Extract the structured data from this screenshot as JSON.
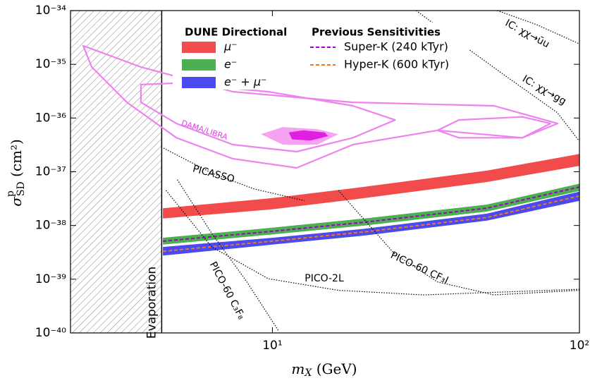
{
  "chart_data": {
    "type": "line",
    "xscale": "log",
    "yscale": "log",
    "xlim": [
      2.2,
      100
    ],
    "ylim": [
      1e-40,
      1e-34
    ],
    "xticks": [
      {
        "value": 10,
        "label": "10¹"
      },
      {
        "value": 100,
        "label": "10²"
      }
    ],
    "yticks": [
      {
        "value": 1e-40,
        "label": "10⁻⁴⁰"
      },
      {
        "value": 1e-39,
        "label": "10⁻³⁹"
      },
      {
        "value": 1e-38,
        "label": "10⁻³⁸"
      },
      {
        "value": 1e-37,
        "label": "10⁻³⁷"
      },
      {
        "value": 1e-36,
        "label": "10⁻³⁶"
      },
      {
        "value": 1e-35,
        "label": "10⁻³⁵"
      },
      {
        "value": 1e-34,
        "label": "10⁻³⁴"
      }
    ],
    "xlabel": {
      "symbol": "m",
      "sub": "X",
      "unit": " (GeV)"
    },
    "ylabel": {
      "symbol": "σ",
      "sub": "SD",
      "sup": "p",
      "unit": " (cm²)"
    },
    "legend_titles": [
      "DUNE Directional",
      "Previous Sensitivities"
    ],
    "bands": [
      {
        "name": "μ⁻",
        "color": "#f24b4b",
        "x": [
          4.4,
          10,
          20,
          50,
          100
        ],
        "lower": [
          1.35e-38,
          2e-38,
          3.24e-38,
          6.46e-38,
          1.29e-37
        ],
        "upper": [
          2.09e-38,
          3.24e-38,
          5.25e-38,
          1.05e-37,
          2.14e-37
        ]
      },
      {
        "name": "e⁻",
        "color": "#4caf50",
        "x": [
          4.4,
          10,
          20,
          50,
          100
        ],
        "lower": [
          4.4e-39,
          6.8e-39,
          1e-38,
          1.82e-38,
          4.4e-38
        ],
        "upper": [
          5.9e-39,
          9.1e-39,
          1.35e-38,
          2.45e-38,
          6e-38
        ]
      },
      {
        "name": "e⁻ + μ⁻",
        "color": "#4a4af0",
        "x": [
          4.4,
          10,
          20,
          50,
          100
        ],
        "lower": [
          2.75e-39,
          4.4e-39,
          6.5e-39,
          1.23e-38,
          2.88e-38
        ],
        "upper": [
          3.98e-39,
          5.9e-39,
          8.7e-39,
          1.66e-38,
          4.27e-38
        ]
      }
    ],
    "series": [
      {
        "name": "Super-K (240 kTyr)",
        "color": "#a000c8",
        "x": [
          4.4,
          10,
          20,
          50,
          100
        ],
        "values": [
          5.1e-39,
          7.8e-39,
          1.15e-38,
          2.1e-38,
          5.2e-38
        ]
      },
      {
        "name": "Hyper-K (600 kTyr)",
        "color": "#f07820",
        "x": [
          4.4,
          10,
          20,
          50,
          100
        ],
        "values": [
          3.3e-39,
          5.1e-39,
          7.6e-39,
          1.41e-38,
          3.55e-38
        ]
      }
    ],
    "curves": [
      {
        "label": "IC: χχ→ūu",
        "x": [
          54,
          72.4,
          100
        ],
        "values": [
          1e-34,
          5.5e-35,
          2.4e-35
        ]
      },
      {
        "label": "IC: χχ→gg",
        "x": [
          29.4,
          40.4,
          58.6,
          84.7,
          100
        ],
        "values": [
          1e-34,
          2.6e-35,
          5.6e-36,
          1.26e-36,
          3.7e-37
        ]
      },
      {
        "label": "PICASSO",
        "x": [
          4.42,
          6.34,
          8.7,
          12.7
        ],
        "values": [
          2.75e-37,
          9.5e-38,
          4.8e-38,
          2.9e-38
        ]
      },
      {
        "label": "PICO-2L",
        "x": [
          4.5,
          6.34,
          9.7,
          16.4,
          31,
          100
        ],
        "values": [
          4.5e-38,
          4e-39,
          1.02e-39,
          6.2e-40,
          5.1e-40,
          6.5e-40
        ]
      },
      {
        "label": "PICO-60 CF₃I",
        "x": [
          16.4,
          25,
          34.5,
          52.7,
          100
        ],
        "values": [
          4.5e-38,
          2.95e-39,
          8.9e-40,
          5.1e-40,
          6.2e-40
        ]
      },
      {
        "label": "PICO-60 C₃F₈",
        "x": [
          4.9,
          6.34,
          8.26,
          10.5
        ],
        "values": [
          7.1e-38,
          7.2e-39,
          8.9e-40,
          1.07e-40
        ]
      }
    ],
    "dama": {
      "label": "DAMA/LIBRA",
      "color": "#ee82ee",
      "contours": [
        {
          "x": [
            2.42,
            3.73,
            7.43,
            18.3,
            52.7,
            84.9,
            65.2,
            34.5,
            18.3,
            12.0,
            7.43,
            4.87,
            3.36,
            2.58
          ],
          "values": [
            2.21e-35,
            8.9e-36,
            3.09e-36,
            1.96e-36,
            1.69e-36,
            7.9e-37,
            4.3e-37,
            5.9e-37,
            3.2e-37,
            1.18e-37,
            1.75e-37,
            4.3e-37,
            1.96e-36,
            8.9e-36
          ]
        },
        {
          "x": [
            3.73,
            4.87,
            9.68,
            18.3,
            25.1,
            18.3,
            12.0,
            7.43,
            4.87,
            3.73
          ],
          "values": [
            4.19e-36,
            4.45e-36,
            3.09e-36,
            1.69e-36,
            9.2e-37,
            4.3e-37,
            2.37e-37,
            3.2e-37,
            7.9e-37,
            1.96e-36
          ]
        },
        {
          "x": [
            34.5,
            40.5,
            65.2,
            80.5,
            65.2,
            40.5
          ],
          "values": [
            5.9e-37,
            9.2e-37,
            1.05e-36,
            7.9e-37,
            4.3e-37,
            4.3e-37
          ]
        },
        {
          "fill": "#f5a3f0",
          "x": [
            9.18,
            10.8,
            14.0,
            16.4,
            14.0,
            10.8
          ],
          "values": [
            5e-37,
            6.8e-37,
            6.2e-37,
            5e-37,
            3.2e-37,
            3.2e-37
          ]
        },
        {
          "fill": "#e020e0",
          "x": [
            11.3,
            12.6,
            14.8,
            15.2,
            13.3,
            11.6
          ],
          "values": [
            5.4e-37,
            5.9e-37,
            5.4e-37,
            4.6e-37,
            3.8e-37,
            4e-37
          ]
        }
      ]
    },
    "evaporation": {
      "label": "Evaporation",
      "x": 4.36
    }
  }
}
